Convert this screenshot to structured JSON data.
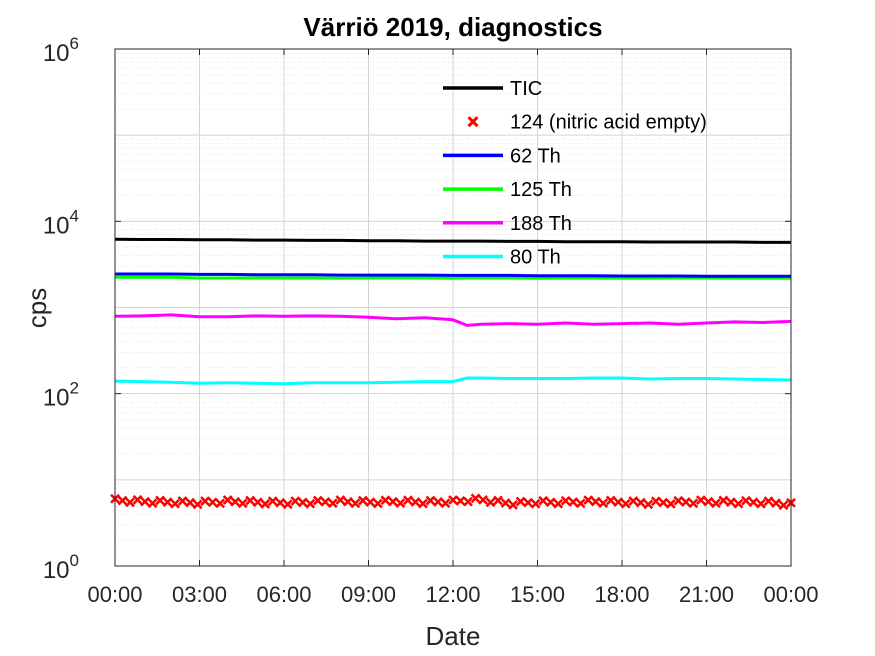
{
  "chart_data": {
    "type": "line",
    "title": "Värriö 2019, diagnostics",
    "xlabel": "Date",
    "ylabel": "cps",
    "yscale": "log",
    "ylim": [
      1,
      1000000
    ],
    "xlim": [
      "00:00",
      "24:00"
    ],
    "grid": true,
    "legend_position": "top-right",
    "x_tick_labels": [
      "00:00",
      "03:00",
      "06:00",
      "09:00",
      "12:00",
      "15:00",
      "18:00",
      "21:00",
      "00:00"
    ],
    "y_tick_labels": [
      {
        "base": "10",
        "exp": "0"
      },
      {
        "base": "10",
        "exp": "2"
      },
      {
        "base": "10",
        "exp": "4"
      },
      {
        "base": "10",
        "exp": "6"
      }
    ],
    "x_hours": [
      0,
      1,
      2,
      3,
      4,
      5,
      6,
      7,
      8,
      9,
      10,
      11,
      12,
      12.5,
      13,
      14,
      15,
      16,
      17,
      18,
      19,
      20,
      21,
      22,
      23,
      24
    ],
    "series": [
      {
        "name": "TIC",
        "color": "#000000",
        "style": "line",
        "values": [
          6200,
          6150,
          6150,
          6100,
          6100,
          6050,
          6050,
          6000,
          6000,
          5950,
          5950,
          5900,
          5900,
          5900,
          5900,
          5850,
          5850,
          5800,
          5800,
          5800,
          5750,
          5750,
          5750,
          5750,
          5700,
          5700
        ]
      },
      {
        "name": "124 (nitric acid empty)",
        "color": "#ff0000",
        "style": "markers",
        "values": [
          5.8,
          5.6,
          5.5,
          5.4,
          5.6,
          5.5,
          5.4,
          5.5,
          5.6,
          5.5,
          5.6,
          5.5,
          5.6,
          5.8,
          5.9,
          5.3,
          5.5,
          5.5,
          5.6,
          5.5,
          5.4,
          5.5,
          5.6,
          5.5,
          5.5,
          5.2
        ]
      },
      {
        "name": "62 Th",
        "color": "#0000ff",
        "style": "line",
        "values": [
          2450,
          2450,
          2450,
          2420,
          2420,
          2400,
          2400,
          2400,
          2380,
          2380,
          2380,
          2380,
          2360,
          2360,
          2360,
          2360,
          2340,
          2340,
          2340,
          2320,
          2320,
          2320,
          2300,
          2300,
          2300,
          2300
        ]
      },
      {
        "name": "125 Th",
        "color": "#00ff00",
        "style": "line",
        "values": [
          2250,
          2250,
          2250,
          2200,
          2200,
          2200,
          2200,
          2200,
          2180,
          2200,
          2200,
          2200,
          2180,
          2200,
          2200,
          2200,
          2180,
          2200,
          2200,
          2180,
          2180,
          2200,
          2200,
          2180,
          2180,
          2180
        ]
      },
      {
        "name": "188 Th",
        "color": "#ff00ff",
        "style": "line",
        "values": [
          790,
          800,
          820,
          780,
          780,
          800,
          790,
          800,
          790,
          770,
          740,
          760,
          720,
          620,
          640,
          650,
          640,
          660,
          640,
          650,
          660,
          640,
          660,
          680,
          670,
          690
        ]
      },
      {
        "name": "80 Th",
        "color": "#00ffff",
        "style": "line",
        "values": [
          140,
          138,
          136,
          132,
          134,
          132,
          130,
          134,
          134,
          134,
          136,
          138,
          138,
          152,
          152,
          150,
          150,
          150,
          152,
          152,
          148,
          150,
          150,
          148,
          146,
          144
        ]
      }
    ]
  }
}
